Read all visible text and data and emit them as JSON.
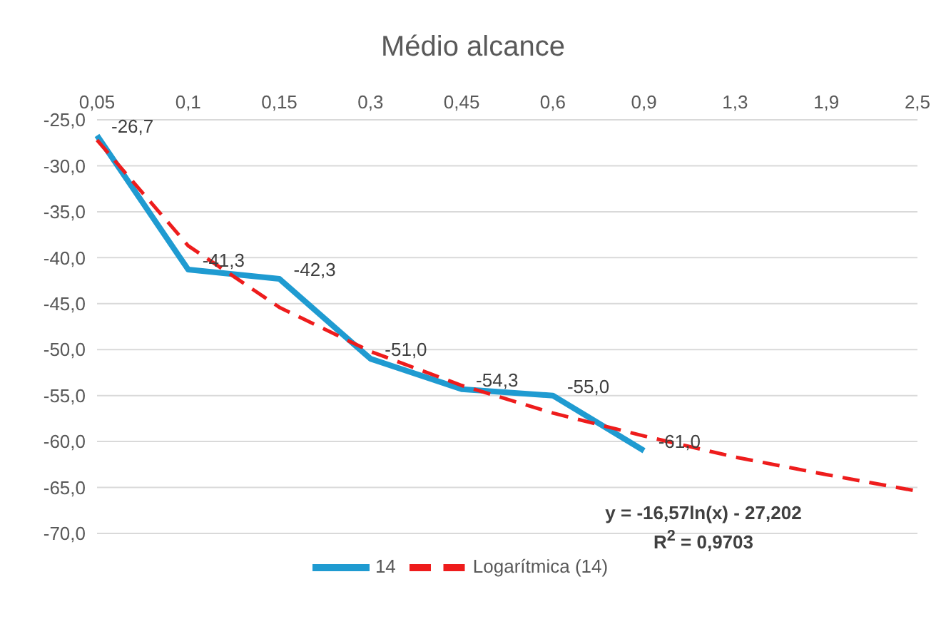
{
  "chart_data": {
    "type": "line",
    "title": "Médio alcance",
    "categories": [
      "0,05",
      "0,1",
      "0,15",
      "0,3",
      "0,45",
      "0,6",
      "0,9",
      "1,3",
      "1,9",
      "2,5"
    ],
    "series": [
      {
        "name": "14",
        "color": "#1f9bd1",
        "line_style": "solid",
        "values": [
          -26.7,
          -41.3,
          -42.3,
          -51.0,
          -54.3,
          -55.0,
          -61.0,
          null,
          null,
          null
        ],
        "value_labels": [
          "-26,7",
          "-41,3",
          "-42,3",
          "-51,0",
          "-54,3",
          "-55,0",
          "-61,0",
          null,
          null,
          null
        ]
      },
      {
        "name": "Logarítmica (14)",
        "color": "#ee1c1c",
        "line_style": "dashed",
        "values": [
          -27.2,
          -38.7,
          -45.4,
          -50.2,
          -53.9,
          -56.9,
          -59.4,
          -61.7,
          -63.6,
          -65.4
        ]
      }
    ],
    "ylim": [
      -70,
      -25
    ],
    "yticks": [
      {
        "value": -25,
        "label": "-25,0"
      },
      {
        "value": -30,
        "label": "-30,0"
      },
      {
        "value": -35,
        "label": "-35,0"
      },
      {
        "value": -40,
        "label": "-40,0"
      },
      {
        "value": -45,
        "label": "-45,0"
      },
      {
        "value": -50,
        "label": "-50,0"
      },
      {
        "value": -55,
        "label": "-55,0"
      },
      {
        "value": -60,
        "label": "-60,0"
      },
      {
        "value": -65,
        "label": "-65,0"
      },
      {
        "value": -70,
        "label": "-70,0"
      }
    ],
    "grid": "y",
    "legend": "bottom",
    "marker": "none",
    "annotations": [
      "y = -16,57ln(x) - 27,202",
      "R$^{2}$ = 0,9703"
    ]
  }
}
